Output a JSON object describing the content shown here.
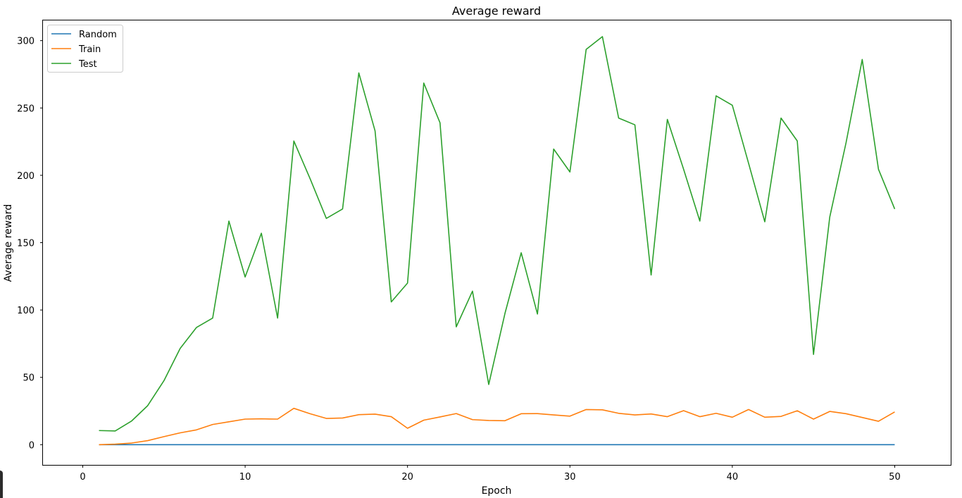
{
  "chart_data": {
    "type": "line",
    "title": "Average reward",
    "xlabel": "Epoch",
    "ylabel": "Average reward",
    "xlim": [
      -2.45,
      53.45
    ],
    "ylim": [
      -15,
      315
    ],
    "xticks": [
      0,
      10,
      20,
      30,
      40,
      50
    ],
    "yticks": [
      0,
      50,
      100,
      150,
      200,
      250,
      300
    ],
    "grid": false,
    "legend": "top-left",
    "x": [
      1,
      2,
      3,
      4,
      5,
      6,
      7,
      8,
      9,
      10,
      11,
      12,
      13,
      14,
      15,
      16,
      17,
      18,
      19,
      20,
      21,
      22,
      23,
      24,
      25,
      26,
      27,
      28,
      29,
      30,
      31,
      32,
      33,
      34,
      35,
      36,
      37,
      38,
      39,
      40,
      41,
      42,
      43,
      44,
      45,
      46,
      47,
      48,
      49,
      50
    ],
    "series": [
      {
        "name": "Random",
        "color": "#1f77b4",
        "values": [
          0,
          0,
          0,
          0,
          0,
          0,
          0,
          0,
          0,
          0,
          0,
          0,
          0,
          0,
          0,
          0,
          0,
          0,
          0,
          0,
          0,
          0,
          0,
          0,
          0,
          0,
          0,
          0,
          0,
          0,
          0,
          0,
          0,
          0,
          0,
          0,
          0,
          0,
          0,
          0,
          0,
          0,
          0,
          0,
          0,
          0,
          0,
          0,
          0,
          0
        ]
      },
      {
        "name": "Train",
        "color": "#ff7f0e",
        "values": [
          0,
          0.4,
          1.2,
          3,
          6,
          8.8,
          11,
          15,
          17,
          19,
          19.2,
          19,
          27,
          23,
          19.5,
          19.8,
          22.3,
          22.7,
          20.8,
          12.2,
          18.2,
          20.6,
          23.1,
          18.6,
          18,
          17.8,
          23,
          23.1,
          22.1,
          21.2,
          26.1,
          25.9,
          23.3,
          22.1,
          22.8,
          20.8,
          25.3,
          20.8,
          23.3,
          20.4,
          26.1,
          20.4,
          21,
          25.2,
          19,
          24.7,
          23,
          20.2,
          17.4,
          24.3
        ]
      },
      {
        "name": "Test",
        "color": "#2ca02c",
        "values": [
          10.5,
          10.2,
          17.5,
          29,
          47.5,
          71.5,
          87,
          94,
          166,
          124.5,
          157,
          94,
          225.5,
          197.5,
          168,
          175,
          276,
          233,
          106,
          120,
          268.5,
          239,
          87.5,
          114,
          44.7,
          97.5,
          142.5,
          97,
          219.5,
          202.5,
          293.5,
          303,
          242.5,
          237.5,
          126,
          241.5,
          204.5,
          166,
          259,
          252,
          209,
          165.5,
          242.5,
          225.5,
          67,
          169,
          224,
          286,
          204.5,
          175
        ]
      }
    ]
  }
}
